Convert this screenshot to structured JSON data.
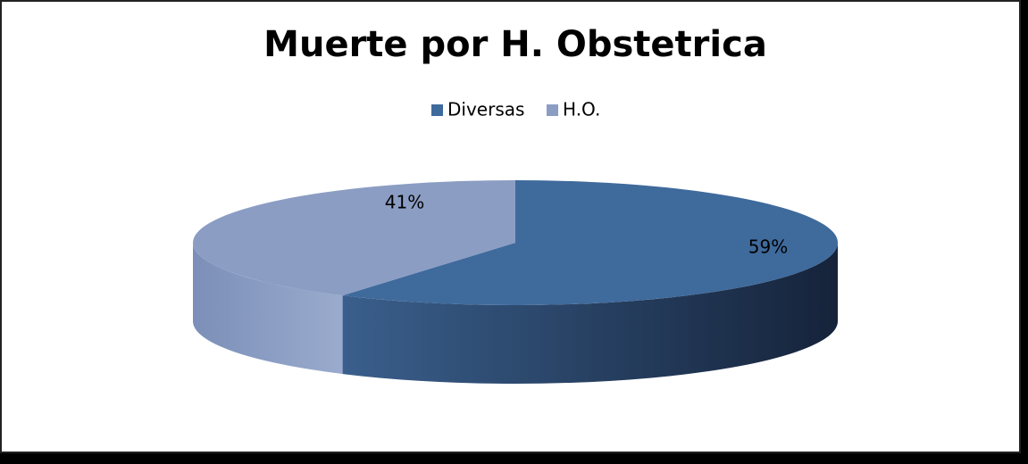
{
  "chart_data": {
    "type": "pie3d",
    "title": "Muerte por H. Obstetrica",
    "categories": [
      "Diversas",
      "H.O."
    ],
    "values": [
      59,
      41
    ],
    "value_labels": [
      "59%",
      "41%"
    ],
    "colors": [
      "#3f6a9c",
      "#8b9dc3"
    ],
    "legend": "top"
  }
}
